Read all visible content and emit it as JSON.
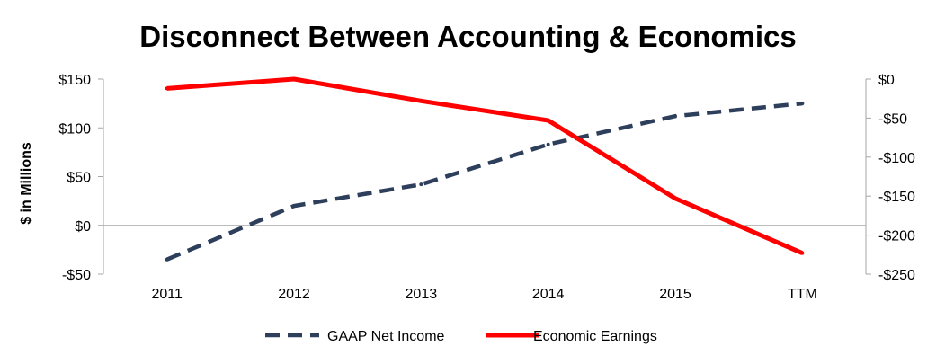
{
  "chart_data": {
    "type": "line",
    "title": "Disconnect Between Accounting & Economics",
    "ylabel": "$ in Millions",
    "categories": [
      "2011",
      "2012",
      "2013",
      "2014",
      "2015",
      "TTM"
    ],
    "y_left": {
      "lim": [
        -50,
        150
      ],
      "ticks": [
        150,
        100,
        50,
        0,
        -50
      ],
      "tick_labels": [
        "$150",
        "$100",
        "$50",
        "$0",
        "-$50"
      ]
    },
    "y_right": {
      "lim": [
        -250,
        0
      ],
      "ticks": [
        0,
        -50,
        -100,
        -150,
        -200,
        -250
      ],
      "tick_labels": [
        "$0",
        "-$50",
        "-$100",
        "-$150",
        "-$200",
        "-$250"
      ]
    },
    "series": [
      {
        "name": "GAAP Net Income",
        "axis": "left",
        "color": "#2e3f5c",
        "style": "dashed",
        "values": [
          -35,
          20,
          42,
          83,
          112,
          125
        ]
      },
      {
        "name": "Economic Earnings",
        "axis": "right",
        "color": "#ff0000",
        "style": "solid",
        "values": [
          -12,
          0,
          -28,
          -53,
          -153,
          -223
        ]
      }
    ],
    "grid": false,
    "legend_position": "bottom"
  }
}
